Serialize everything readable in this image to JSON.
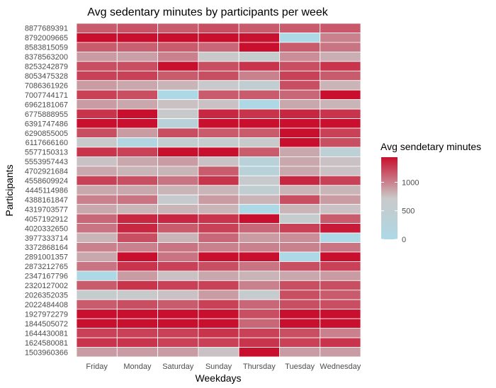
{
  "chart_data": {
    "type": "heatmap",
    "title": "Avg sedentary minutes by participants per week",
    "xlabel": "Weekdays",
    "ylabel": "Participants",
    "x": [
      "Friday",
      "Monday",
      "Saturday",
      "Sunday",
      "Thursday",
      "Tuesday",
      "Wednesday"
    ],
    "y": [
      "8877689391",
      "8792009665",
      "8583815059",
      "8378563200",
      "8253242879",
      "8053475328",
      "7086361926",
      "7007744171",
      "6962181067",
      "6775888955",
      "6391747486",
      "6290855005",
      "6117666160",
      "5577150313",
      "5553957443",
      "4702921684",
      "4558609924",
      "4445114986",
      "4388161847",
      "4319703577",
      "4057192912",
      "4020332650",
      "3977333714",
      "3372868164",
      "2891001357",
      "2873212765",
      "2347167796",
      "2320127002",
      "2026352035",
      "2022484408",
      "1927972279",
      "1844505072",
      "1644430081",
      "1624580081",
      "1503960366"
    ],
    "values": [
      [
        1150,
        1180,
        1150,
        1200,
        1150,
        1150,
        1160
      ],
      [
        1440,
        1440,
        1440,
        1440,
        1430,
        0,
        1000
      ],
      [
        1150,
        1130,
        1150,
        1100,
        1440,
        1150,
        1050
      ],
      [
        900,
        880,
        1000,
        700,
        600,
        950,
        820
      ],
      [
        1200,
        1200,
        1440,
        1200,
        1300,
        1200,
        1300
      ],
      [
        1250,
        1250,
        1150,
        1200,
        1000,
        1250,
        1150
      ],
      [
        900,
        850,
        800,
        700,
        500,
        1200,
        800
      ],
      [
        1250,
        1200,
        0,
        1150,
        1150,
        1100,
        1440
      ],
      [
        900,
        850,
        750,
        750,
        0,
        850,
        800
      ],
      [
        1300,
        1440,
        700,
        1350,
        1300,
        1350,
        1300
      ],
      [
        1440,
        1440,
        300,
        1440,
        1440,
        1440,
        1440
      ],
      [
        1200,
        900,
        1200,
        1150,
        1150,
        1440,
        1250
      ],
      [
        700,
        100,
        550,
        600,
        700,
        1440,
        1200
      ],
      [
        1300,
        1250,
        1440,
        1440,
        1150,
        850,
        400
      ],
      [
        750,
        850,
        900,
        750,
        300,
        850,
        750
      ],
      [
        850,
        800,
        800,
        1150,
        300,
        850,
        750
      ],
      [
        1250,
        1200,
        1050,
        1300,
        650,
        1350,
        1250
      ],
      [
        850,
        850,
        800,
        800,
        500,
        800,
        800
      ],
      [
        1000,
        1050,
        650,
        900,
        800,
        1200,
        900
      ],
      [
        850,
        800,
        800,
        800,
        0,
        800,
        750
      ],
      [
        1100,
        1350,
        1350,
        1300,
        1440,
        600,
        1150
      ],
      [
        1050,
        1350,
        1150,
        1250,
        1100,
        1250,
        1400
      ],
      [
        800,
        1200,
        800,
        1100,
        900,
        950,
        0
      ],
      [
        1000,
        1000,
        1050,
        1000,
        1000,
        1000,
        1050
      ],
      [
        850,
        1440,
        1050,
        1440,
        1440,
        0,
        1440
      ],
      [
        1050,
        1300,
        1250,
        1200,
        1050,
        1200,
        1250
      ],
      [
        0,
        900,
        750,
        850,
        800,
        850,
        900
      ],
      [
        1150,
        1300,
        1250,
        1250,
        1000,
        1200,
        1200
      ],
      [
        600,
        700,
        750,
        900,
        600,
        1200,
        1150
      ],
      [
        1150,
        1200,
        1150,
        1250,
        1100,
        1200,
        1200
      ],
      [
        1440,
        1440,
        1440,
        1440,
        1200,
        1440,
        1440
      ],
      [
        1440,
        1440,
        1440,
        1440,
        1100,
        1440,
        1440
      ],
      [
        1250,
        1250,
        1250,
        1300,
        1250,
        1200,
        1000
      ],
      [
        1300,
        1300,
        1250,
        1250,
        1300,
        1250,
        1300
      ],
      [
        900,
        900,
        900,
        750,
        1440,
        900,
        900
      ]
    ],
    "legend": {
      "title": "Avg sendetary minutes",
      "ticks": [
        0,
        500,
        1000
      ],
      "range": [
        0,
        1440
      ],
      "placement": "right"
    },
    "colors": {
      "low": "#add8e6",
      "mid": "#c9c9c9",
      "high": "#c8102e",
      "grid": "#ffffff"
    },
    "grid": false
  }
}
